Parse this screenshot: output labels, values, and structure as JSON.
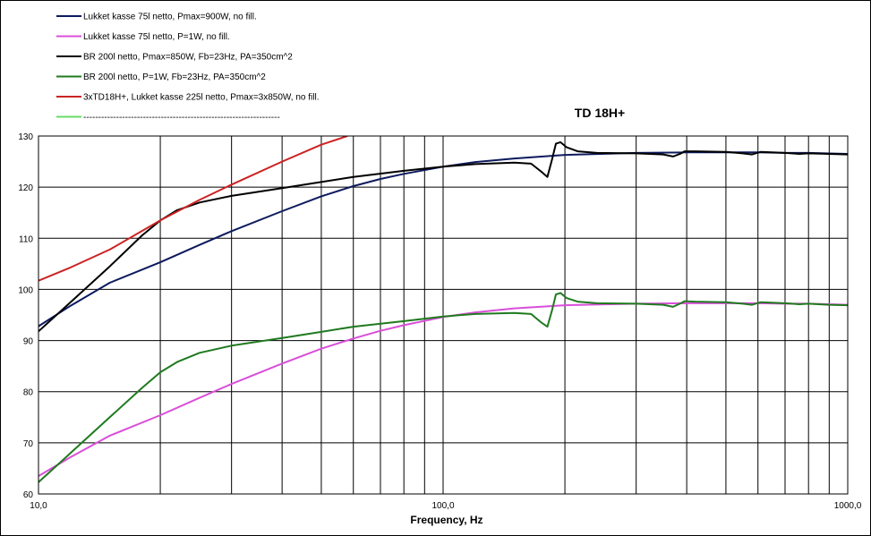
{
  "chart_data": {
    "type": "line",
    "title": "TD 18H+",
    "xlabel": "Frequency, Hz",
    "ylabel": "",
    "x_scale": "log",
    "xlim": [
      10,
      1000
    ],
    "ylim": [
      60,
      130
    ],
    "x_tick_values": [
      10,
      100,
      1000
    ],
    "x_tick_labels": [
      "10,0",
      "100,0",
      "1000,0"
    ],
    "x_gridlines": [
      10,
      20,
      30,
      40,
      50,
      60,
      70,
      80,
      90,
      100,
      200,
      300,
      400,
      500,
      600,
      700,
      800,
      900,
      1000
    ],
    "y_ticks": [
      60,
      70,
      80,
      90,
      100,
      110,
      120,
      130
    ],
    "grid": true,
    "legend_position": "top-left",
    "series": [
      {
        "name": "Lukket kasse 75l netto, Pmax=900W, no fill.",
        "color": "#0d1a5e",
        "points": [
          [
            10,
            92.8
          ],
          [
            12,
            96.8
          ],
          [
            15,
            101.3
          ],
          [
            20,
            105.3
          ],
          [
            25,
            108.7
          ],
          [
            30,
            111.4
          ],
          [
            40,
            115.3
          ],
          [
            50,
            118.2
          ],
          [
            60,
            120.2
          ],
          [
            70,
            121.6
          ],
          [
            80,
            122.6
          ],
          [
            100,
            124.0
          ],
          [
            120,
            124.9
          ],
          [
            150,
            125.6
          ],
          [
            200,
            126.3
          ],
          [
            300,
            126.7
          ],
          [
            400,
            126.8
          ],
          [
            500,
            126.8
          ],
          [
            600,
            126.8
          ],
          [
            700,
            126.7
          ],
          [
            800,
            126.7
          ],
          [
            1000,
            126.5
          ]
        ]
      },
      {
        "name": "Lukket kasse 75l netto, P=1W, no fill.",
        "color": "#d94fd9",
        "points": [
          [
            10,
            63.5
          ],
          [
            12,
            67.2
          ],
          [
            15,
            71.4
          ],
          [
            20,
            75.4
          ],
          [
            25,
            78.8
          ],
          [
            30,
            81.5
          ],
          [
            40,
            85.5
          ],
          [
            50,
            88.4
          ],
          [
            60,
            90.4
          ],
          [
            70,
            91.9
          ],
          [
            80,
            93.0
          ],
          [
            100,
            94.6
          ],
          [
            120,
            95.5
          ],
          [
            150,
            96.3
          ],
          [
            200,
            96.9
          ],
          [
            300,
            97.2
          ],
          [
            400,
            97.3
          ],
          [
            500,
            97.3
          ],
          [
            600,
            97.3
          ],
          [
            700,
            97.2
          ],
          [
            800,
            97.2
          ],
          [
            1000,
            97.0
          ]
        ]
      },
      {
        "name": "BR 200l netto, Pmax=850W, Fb=23Hz, PA=350cm^2",
        "color": "#000000",
        "points": [
          [
            10,
            91.8
          ],
          [
            12,
            97.5
          ],
          [
            15,
            104.5
          ],
          [
            18,
            110.5
          ],
          [
            20,
            113.5
          ],
          [
            22,
            115.5
          ],
          [
            25,
            117.0
          ],
          [
            30,
            118.3
          ],
          [
            40,
            119.8
          ],
          [
            50,
            121.0
          ],
          [
            60,
            122.0
          ],
          [
            80,
            123.2
          ],
          [
            100,
            124.0
          ],
          [
            120,
            124.5
          ],
          [
            150,
            124.8
          ],
          [
            165,
            124.6
          ],
          [
            175,
            123.0
          ],
          [
            181,
            122.0
          ],
          [
            186,
            125.5
          ],
          [
            190,
            128.5
          ],
          [
            195,
            128.8
          ],
          [
            202,
            127.8
          ],
          [
            215,
            127.0
          ],
          [
            240,
            126.7
          ],
          [
            300,
            126.6
          ],
          [
            350,
            126.4
          ],
          [
            370,
            126.0
          ],
          [
            385,
            126.5
          ],
          [
            395,
            127.0
          ],
          [
            420,
            127.0
          ],
          [
            500,
            126.9
          ],
          [
            550,
            126.6
          ],
          [
            580,
            126.4
          ],
          [
            610,
            126.9
          ],
          [
            650,
            126.8
          ],
          [
            700,
            126.7
          ],
          [
            760,
            126.5
          ],
          [
            800,
            126.6
          ],
          [
            900,
            126.5
          ],
          [
            1000,
            126.4
          ]
        ]
      },
      {
        "name": "BR 200l netto, P=1W, Fb=23Hz, PA=350cm^2",
        "color": "#1f7a1f",
        "points": [
          [
            10,
            62.3
          ],
          [
            12,
            68.0
          ],
          [
            15,
            75.0
          ],
          [
            18,
            80.7
          ],
          [
            20,
            83.8
          ],
          [
            22,
            85.8
          ],
          [
            25,
            87.6
          ],
          [
            30,
            89.0
          ],
          [
            40,
            90.5
          ],
          [
            50,
            91.7
          ],
          [
            60,
            92.7
          ],
          [
            80,
            93.8
          ],
          [
            100,
            94.7
          ],
          [
            120,
            95.2
          ],
          [
            150,
            95.4
          ],
          [
            165,
            95.2
          ],
          [
            175,
            93.5
          ],
          [
            181,
            92.7
          ],
          [
            186,
            96.0
          ],
          [
            190,
            99.0
          ],
          [
            195,
            99.3
          ],
          [
            202,
            98.3
          ],
          [
            215,
            97.6
          ],
          [
            240,
            97.3
          ],
          [
            300,
            97.2
          ],
          [
            350,
            97.0
          ],
          [
            370,
            96.6
          ],
          [
            385,
            97.2
          ],
          [
            395,
            97.7
          ],
          [
            420,
            97.6
          ],
          [
            500,
            97.5
          ],
          [
            550,
            97.2
          ],
          [
            580,
            97.0
          ],
          [
            610,
            97.5
          ],
          [
            650,
            97.4
          ],
          [
            700,
            97.3
          ],
          [
            760,
            97.1
          ],
          [
            800,
            97.2
          ],
          [
            900,
            97.0
          ],
          [
            1000,
            96.9
          ]
        ]
      },
      {
        "name": "3xTD18H+, Lukket kasse 225l netto, Pmax=3x850W, no fill.",
        "color": "#cc2222",
        "points": [
          [
            10,
            101.7
          ],
          [
            12,
            104.3
          ],
          [
            15,
            107.8
          ],
          [
            20,
            113.5
          ],
          [
            25,
            117.5
          ],
          [
            30,
            120.5
          ],
          [
            40,
            125.0
          ],
          [
            50,
            128.3
          ],
          [
            58,
            130.0
          ]
        ]
      },
      {
        "name": "------------------------------------------------------------------",
        "color": "#66dd66",
        "points": []
      }
    ]
  }
}
